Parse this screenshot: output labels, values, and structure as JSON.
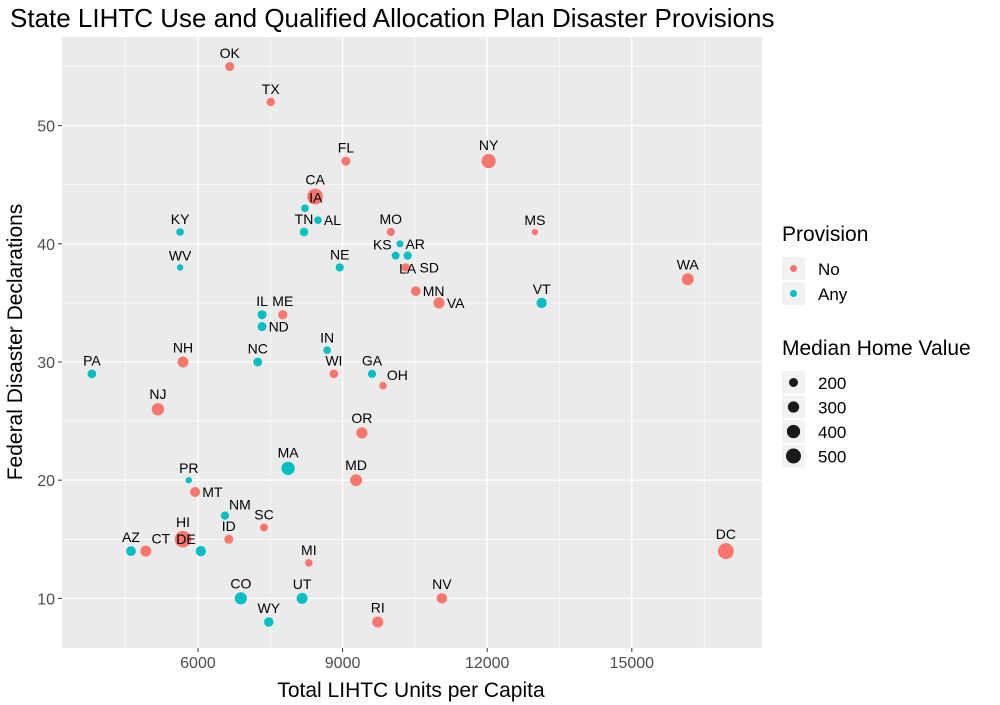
{
  "chart_data": {
    "type": "scatter",
    "title": "State LIHTC Use and Qualified Allocation Plan Disaster Provisions",
    "xlabel": "Total LIHTC Units per Capita",
    "ylabel": "Federal Disaster Declarations",
    "xlim": [
      3180,
      17700
    ],
    "ylim": [
      5.8,
      57.5
    ],
    "xticks": [
      6000,
      9000,
      12000,
      15000
    ],
    "yticks": [
      10,
      20,
      30,
      40,
      50
    ],
    "grid": true,
    "legend_position": "right",
    "colors": {
      "No": "#F8766D",
      "Any": "#00BFC4"
    },
    "legend_color": {
      "title": "Provision",
      "entries": [
        "No",
        "Any"
      ]
    },
    "legend_size": {
      "title": "Median Home Value",
      "entries": [
        200,
        300,
        400,
        500
      ]
    },
    "points": [
      {
        "label": "OK",
        "x": 6660,
        "y": 55,
        "provision": "No",
        "home_value": 200
      },
      {
        "label": "TX",
        "x": 7510,
        "y": 52,
        "provision": "No",
        "home_value": 180
      },
      {
        "label": "FL",
        "x": 9070,
        "y": 47,
        "provision": "No",
        "home_value": 200
      },
      {
        "label": "NY",
        "x": 12030,
        "y": 47,
        "provision": "No",
        "home_value": 450
      },
      {
        "label": "CA",
        "x": 8430,
        "y": 44,
        "provision": "No",
        "home_value": 550
      },
      {
        "label": "IA",
        "x": 8220,
        "y": 43,
        "provision": "Any",
        "home_value": 150
      },
      {
        "label": "AL",
        "x": 8490,
        "y": 42,
        "provision": "Any",
        "home_value": 150
      },
      {
        "label": "TN",
        "x": 8200,
        "y": 41,
        "provision": "Any",
        "home_value": 180
      },
      {
        "label": "KY",
        "x": 5630,
        "y": 41,
        "provision": "Any",
        "home_value": 150
      },
      {
        "label": "MO",
        "x": 10000,
        "y": 41,
        "provision": "No",
        "home_value": 170
      },
      {
        "label": "MS",
        "x": 12990,
        "y": 41,
        "provision": "No",
        "home_value": 110
      },
      {
        "label": "AR",
        "x": 10190,
        "y": 40,
        "provision": "Any",
        "home_value": 130
      },
      {
        "label": "KS",
        "x": 10100,
        "y": 39,
        "provision": "Any",
        "home_value": 160
      },
      {
        "label": "LA",
        "x": 10350,
        "y": 39,
        "provision": "Any",
        "home_value": 170
      },
      {
        "label": "SD",
        "x": 10310,
        "y": 38,
        "provision": "No",
        "home_value": 170
      },
      {
        "label": "NE",
        "x": 8940,
        "y": 38,
        "provision": "Any",
        "home_value": 170
      },
      {
        "label": "WV",
        "x": 5630,
        "y": 38,
        "provision": "Any",
        "home_value": 110
      },
      {
        "label": "MN",
        "x": 10520,
        "y": 36,
        "provision": "No",
        "home_value": 230
      },
      {
        "label": "VA",
        "x": 11000,
        "y": 35,
        "provision": "No",
        "home_value": 290
      },
      {
        "label": "VT",
        "x": 13130,
        "y": 35,
        "provision": "Any",
        "home_value": 250
      },
      {
        "label": "WA",
        "x": 16160,
        "y": 37,
        "provision": "No",
        "home_value": 330
      },
      {
        "label": "ME",
        "x": 7760,
        "y": 34,
        "provision": "No",
        "home_value": 210
      },
      {
        "label": "IL",
        "x": 7330,
        "y": 34,
        "provision": "Any",
        "home_value": 200
      },
      {
        "label": "ND",
        "x": 7330,
        "y": 33,
        "provision": "Any",
        "home_value": 200
      },
      {
        "label": "IN",
        "x": 8680,
        "y": 31,
        "provision": "Any",
        "home_value": 150
      },
      {
        "label": "NH",
        "x": 5690,
        "y": 30,
        "provision": "No",
        "home_value": 280
      },
      {
        "label": "NC",
        "x": 7240,
        "y": 30,
        "provision": "Any",
        "home_value": 190
      },
      {
        "label": "PA",
        "x": 3800,
        "y": 29,
        "provision": "Any",
        "home_value": 190
      },
      {
        "label": "WI",
        "x": 8820,
        "y": 29,
        "provision": "No",
        "home_value": 190
      },
      {
        "label": "GA",
        "x": 9610,
        "y": 29,
        "provision": "Any",
        "home_value": 170
      },
      {
        "label": "OH",
        "x": 9840,
        "y": 28,
        "provision": "No",
        "home_value": 150
      },
      {
        "label": "NJ",
        "x": 5170,
        "y": 26,
        "provision": "No",
        "home_value": 350
      },
      {
        "label": "OR",
        "x": 9400,
        "y": 24,
        "provision": "No",
        "home_value": 300
      },
      {
        "label": "MA",
        "x": 7870,
        "y": 21,
        "provision": "Any",
        "home_value": 400
      },
      {
        "label": "MD",
        "x": 9280,
        "y": 20,
        "provision": "No",
        "home_value": 330
      },
      {
        "label": "PR",
        "x": 5810,
        "y": 20,
        "provision": "Any",
        "home_value": 110
      },
      {
        "label": "MT",
        "x": 5940,
        "y": 19,
        "provision": "No",
        "home_value": 240
      },
      {
        "label": "NM",
        "x": 6560,
        "y": 17,
        "provision": "Any",
        "home_value": 170
      },
      {
        "label": "SC",
        "x": 7370,
        "y": 16,
        "provision": "No",
        "home_value": 160
      },
      {
        "label": "ID",
        "x": 6640,
        "y": 15,
        "provision": "No",
        "home_value": 200
      },
      {
        "label": "HI",
        "x": 5690,
        "y": 15,
        "provision": "No",
        "home_value": 600
      },
      {
        "label": "AZ",
        "x": 4610,
        "y": 14,
        "provision": "Any",
        "home_value": 230
      },
      {
        "label": "CT",
        "x": 4920,
        "y": 14,
        "provision": "No",
        "home_value": 280
      },
      {
        "label": "DE",
        "x": 6060,
        "y": 14,
        "provision": "Any",
        "home_value": 250
      },
      {
        "label": "DC",
        "x": 16950,
        "y": 14,
        "provision": "No",
        "home_value": 560
      },
      {
        "label": "MI",
        "x": 8300,
        "y": 13,
        "provision": "No",
        "home_value": 150
      },
      {
        "label": "CO",
        "x": 6890,
        "y": 10,
        "provision": "Any",
        "home_value": 340
      },
      {
        "label": "UT",
        "x": 8160,
        "y": 10,
        "provision": "Any",
        "home_value": 280
      },
      {
        "label": "NV",
        "x": 11060,
        "y": 10,
        "provision": "No",
        "home_value": 260
      },
      {
        "label": "WY",
        "x": 7470,
        "y": 8,
        "provision": "Any",
        "home_value": 220
      },
      {
        "label": "RI",
        "x": 9730,
        "y": 8,
        "provision": "No",
        "home_value": 290
      }
    ]
  }
}
